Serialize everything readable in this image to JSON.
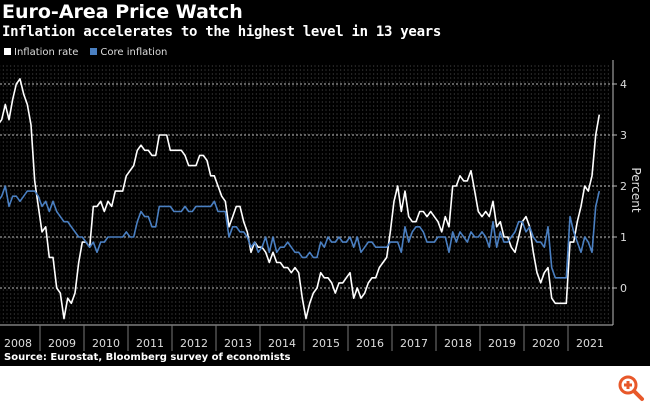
{
  "title": "Euro-Area Price Watch",
  "subtitle": "Inflation accelerates to the highest level in 13 years",
  "source": "Source: Eurostat, Bloomberg survey of economists",
  "colors": {
    "background": "#000000",
    "inflation": "#ffffff",
    "core": "#4a7fc1",
    "zoom_icon": "#e8582a"
  },
  "zoom_icon": "magnify-plus-icon",
  "chart_data": {
    "type": "line",
    "x_start": "2008-01",
    "x_end": "2021-09",
    "frequency": "monthly",
    "ylabel": "Percent",
    "ylim": [
      -0.73,
      4.45
    ],
    "y_ticks": [
      0,
      1,
      2,
      3,
      4
    ],
    "y_axis_side": "right",
    "x_tick_labels": [
      "2008",
      "2009",
      "2010",
      "2011",
      "2012",
      "2013",
      "2014",
      "2015",
      "2016",
      "2017",
      "2018",
      "2019",
      "2020",
      "2021"
    ],
    "grid": "dotted horizontal at ticks, vertical at months",
    "legend_placement": "top-left",
    "series": [
      {
        "name": "Inflation rate",
        "values": [
          3.2,
          3.3,
          3.6,
          3.3,
          3.7,
          4.0,
          4.1,
          3.8,
          3.6,
          3.2,
          2.1,
          1.6,
          1.1,
          1.2,
          0.6,
          0.6,
          0.0,
          -0.1,
          -0.6,
          -0.2,
          -0.3,
          -0.1,
          0.5,
          0.9,
          0.9,
          0.8,
          1.6,
          1.6,
          1.7,
          1.5,
          1.7,
          1.6,
          1.9,
          1.9,
          1.9,
          2.2,
          2.3,
          2.4,
          2.7,
          2.8,
          2.7,
          2.7,
          2.6,
          2.6,
          3.0,
          3.0,
          3.0,
          2.7,
          2.7,
          2.7,
          2.7,
          2.6,
          2.4,
          2.4,
          2.4,
          2.6,
          2.6,
          2.5,
          2.2,
          2.2,
          2.0,
          1.8,
          1.7,
          1.2,
          1.4,
          1.6,
          1.6,
          1.3,
          1.1,
          0.7,
          0.9,
          0.8,
          0.8,
          0.7,
          0.5,
          0.7,
          0.5,
          0.5,
          0.4,
          0.4,
          0.3,
          0.4,
          0.3,
          -0.2,
          -0.6,
          -0.3,
          -0.1,
          0.0,
          0.3,
          0.2,
          0.2,
          0.1,
          -0.1,
          0.1,
          0.1,
          0.2,
          0.3,
          -0.2,
          0.0,
          -0.2,
          -0.1,
          0.1,
          0.2,
          0.2,
          0.4,
          0.5,
          0.6,
          1.1,
          1.7,
          2.0,
          1.5,
          1.9,
          1.4,
          1.3,
          1.3,
          1.5,
          1.5,
          1.4,
          1.5,
          1.4,
          1.3,
          1.1,
          1.4,
          1.2,
          2.0,
          2.0,
          2.2,
          2.1,
          2.1,
          2.3,
          1.9,
          1.5,
          1.4,
          1.5,
          1.4,
          1.7,
          1.2,
          1.3,
          1.0,
          1.0,
          0.8,
          0.7,
          1.0,
          1.3,
          1.4,
          1.2,
          0.7,
          0.3,
          0.1,
          0.3,
          0.4,
          -0.2,
          -0.3,
          -0.3,
          -0.3,
          -0.3,
          0.9,
          0.9,
          1.3,
          1.6,
          2.0,
          1.9,
          2.2,
          3.0,
          3.4
        ]
      },
      {
        "name": "Core inflation",
        "values": [
          1.7,
          1.8,
          2.0,
          1.6,
          1.8,
          1.8,
          1.7,
          1.8,
          1.9,
          1.9,
          1.9,
          1.8,
          1.6,
          1.7,
          1.5,
          1.7,
          1.5,
          1.4,
          1.3,
          1.3,
          1.2,
          1.1,
          1.0,
          1.0,
          0.9,
          0.8,
          0.9,
          0.7,
          0.9,
          0.9,
          1.0,
          1.0,
          1.0,
          1.0,
          1.0,
          1.1,
          1.0,
          1.0,
          1.3,
          1.5,
          1.4,
          1.4,
          1.2,
          1.2,
          1.6,
          1.6,
          1.6,
          1.6,
          1.5,
          1.5,
          1.5,
          1.6,
          1.5,
          1.5,
          1.6,
          1.6,
          1.6,
          1.6,
          1.6,
          1.7,
          1.5,
          1.5,
          1.5,
          1.0,
          1.2,
          1.2,
          1.1,
          1.1,
          1.0,
          0.8,
          0.9,
          0.7,
          0.8,
          1.0,
          0.7,
          1.0,
          0.7,
          0.8,
          0.8,
          0.9,
          0.8,
          0.7,
          0.7,
          0.6,
          0.6,
          0.7,
          0.6,
          0.6,
          0.9,
          0.8,
          1.0,
          0.9,
          0.9,
          1.0,
          0.9,
          0.9,
          1.0,
          0.8,
          1.0,
          0.7,
          0.8,
          0.9,
          0.9,
          0.8,
          0.8,
          0.8,
          0.8,
          0.9,
          0.9,
          0.9,
          0.7,
          1.2,
          0.9,
          1.1,
          1.2,
          1.2,
          1.1,
          0.9,
          0.9,
          0.9,
          1.0,
          1.0,
          1.0,
          0.7,
          1.1,
          0.9,
          1.1,
          1.0,
          0.9,
          1.1,
          1.0,
          1.0,
          1.1,
          1.0,
          0.8,
          1.3,
          0.8,
          1.1,
          0.9,
          0.9,
          1.0,
          1.1,
          1.3,
          1.3,
          1.1,
          1.2,
          1.0,
          0.9,
          0.9,
          0.8,
          1.2,
          0.4,
          0.2,
          0.2,
          0.2,
          0.2,
          1.4,
          1.1,
          0.9,
          0.7,
          1.0,
          0.9,
          0.7,
          1.6,
          1.9
        ]
      }
    ]
  }
}
